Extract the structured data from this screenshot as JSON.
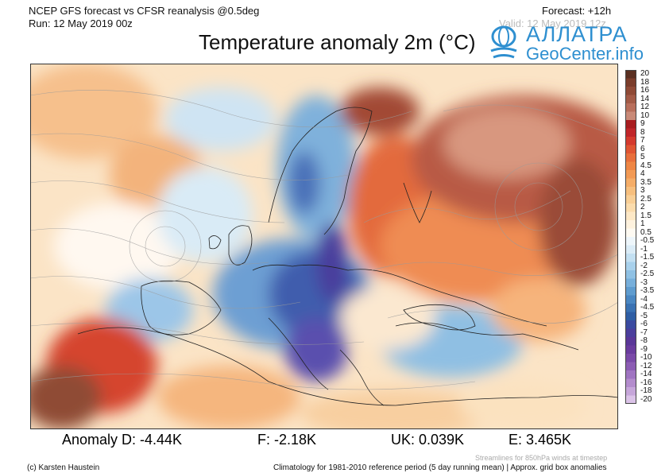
{
  "header": {
    "model_line": "NCEP GFS forecast vs CFSR reanalysis @0.5deg",
    "run_line": "Run: 12 May 2019 00z",
    "forecast_line": "Forecast: +12h",
    "valid_line": "Valid: 12 May 2019 12z"
  },
  "title": "Temperature anomaly 2m (°C)",
  "logo": {
    "line1": "АЛЛАТРА",
    "line2": "GeoCenter.info"
  },
  "colorbar": {
    "labels": [
      "20",
      "18",
      "16",
      "14",
      "12",
      "10",
      "9",
      "8",
      "7",
      "6",
      "5",
      "4.5",
      "4",
      "3.5",
      "3",
      "2.5",
      "2",
      "1.5",
      "1",
      "0.5",
      "-0.5",
      "-1",
      "-1.5",
      "-2",
      "-2.5",
      "-3",
      "-3.5",
      "-4",
      "-4.5",
      "-5",
      "-6",
      "-7",
      "-8",
      "-9",
      "-10",
      "-12",
      "-14",
      "-16",
      "-18",
      "-20"
    ],
    "colors": [
      "#5a3021",
      "#7a3d2b",
      "#8f4a36",
      "#a35b47",
      "#b86f5c",
      "#c98a78",
      "#a81d20",
      "#c0262a",
      "#d43a2e",
      "#e05533",
      "#e86f3c",
      "#ee8645",
      "#f29a55",
      "#f5ad68",
      "#f7bf7e",
      "#f9cf96",
      "#fbdcad",
      "#fde8c6",
      "#fef2de",
      "#fefaf2",
      "#eef6fb",
      "#dbecf7",
      "#c3e0f2",
      "#a9d1ec",
      "#8fc1e4",
      "#77afdb",
      "#5f9ccf",
      "#4a87c2",
      "#3a72b3",
      "#2f5ea4",
      "#3a4aa0",
      "#4b3e9c",
      "#5a3798",
      "#6a3c9e",
      "#7a4aa8",
      "#8c5db4",
      "#9f74c1",
      "#b38ccd",
      "#c6a6da",
      "#dbc3e8"
    ]
  },
  "stats": {
    "d": "Anomaly D: -4.44K",
    "f": "F: -2.18K",
    "uk": "UK: 0.039K",
    "e": "E: 3.465K"
  },
  "footer": {
    "streamlines": "Streamlines for 850hPa winds at timestep",
    "credit": "(c) Karsten Haustein",
    "climatology": "Climatology for 1981-2010 reference period (5 day running mean) | Approx. grid box anomalies"
  }
}
